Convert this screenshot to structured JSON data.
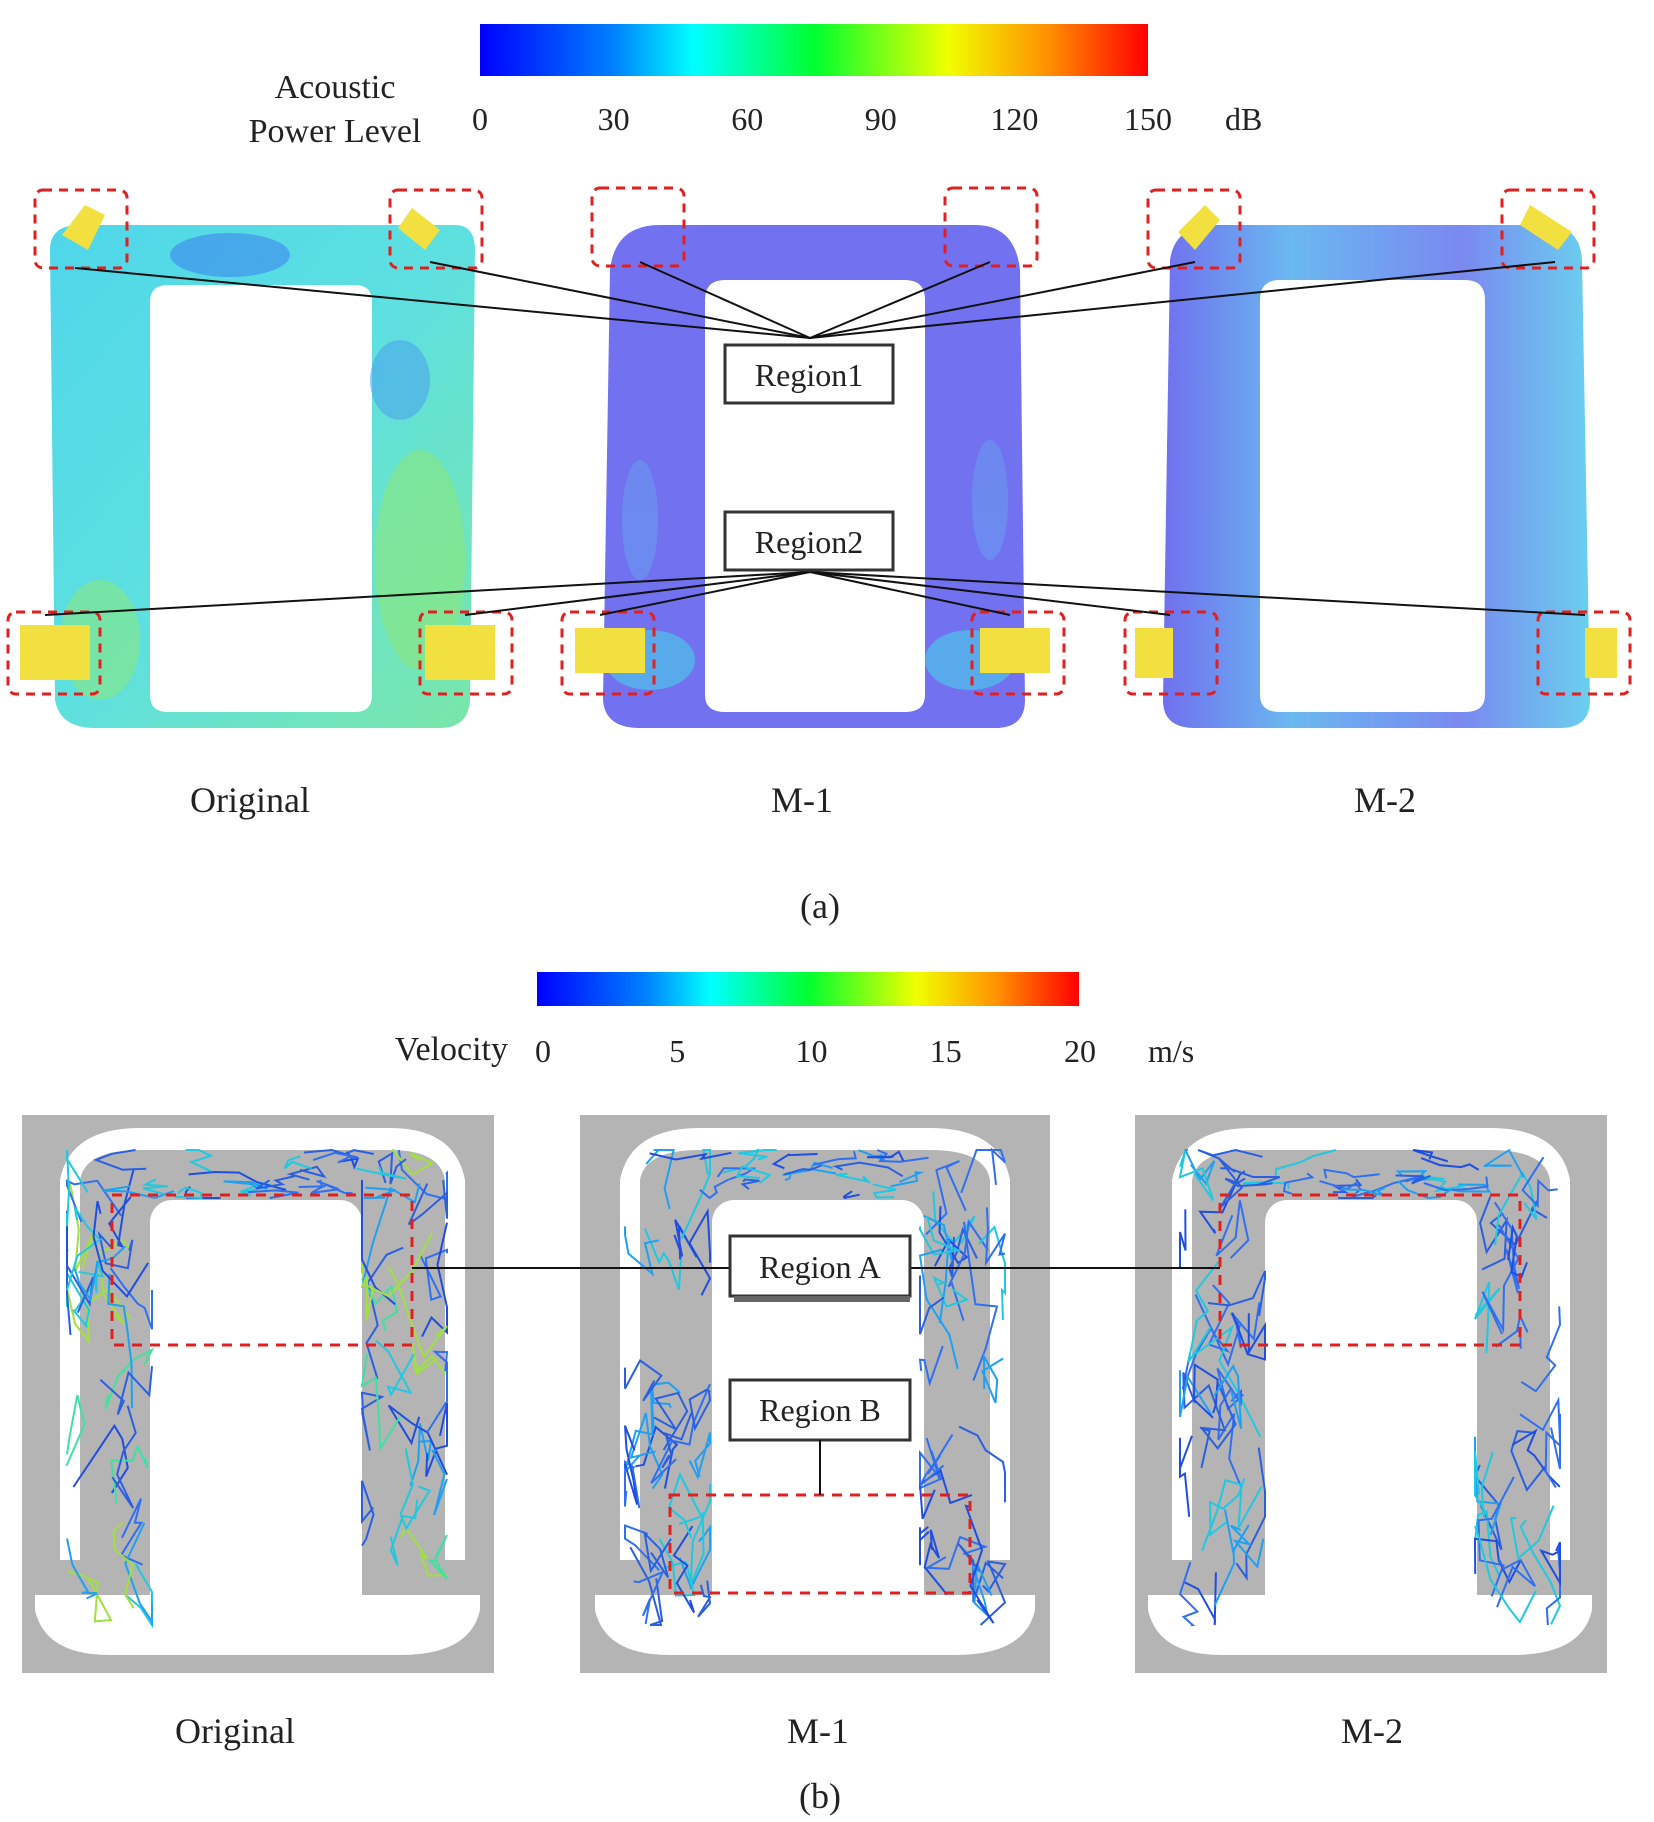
{
  "panel_a": {
    "caption": "(a)",
    "colorbar": {
      "label_line1": "Acoustic",
      "label_line2": "Power Level",
      "ticks": [
        "0",
        "30",
        "60",
        "90",
        "120",
        "150"
      ],
      "range": [
        0,
        150
      ],
      "unit": "dB",
      "colormap": [
        "#0000ff",
        "#00a0ff",
        "#00ffff",
        "#00ff40",
        "#c0ff00",
        "#ffff00",
        "#ff8000",
        "#ff0000"
      ]
    },
    "cases": [
      {
        "name": "Original",
        "field_color": "#55e0e8"
      },
      {
        "name": "M-1",
        "field_color": "#7272f0"
      },
      {
        "name": "M-2",
        "field_color": "#7878f0"
      }
    ],
    "regions": [
      "Region1",
      "Region2"
    ],
    "source_color": "#f2e040",
    "highlight_color": "#e02020"
  },
  "panel_b": {
    "caption": "(b)",
    "colorbar": {
      "label": "Velocity",
      "ticks": [
        "0",
        "5",
        "10",
        "15",
        "20"
      ],
      "range": [
        0,
        20
      ],
      "unit": "m/s",
      "colormap": [
        "#0000ff",
        "#00a0ff",
        "#00ffff",
        "#00ff40",
        "#c0ff00",
        "#ffff00",
        "#ff8000",
        "#ff0000"
      ]
    },
    "cases": [
      {
        "name": "Original"
      },
      {
        "name": "M-1"
      },
      {
        "name": "M-2"
      }
    ],
    "regions": [
      "Region A",
      "Region B"
    ],
    "background_color": "#b4b4b4",
    "streamline_color": "#2a60e0"
  }
}
